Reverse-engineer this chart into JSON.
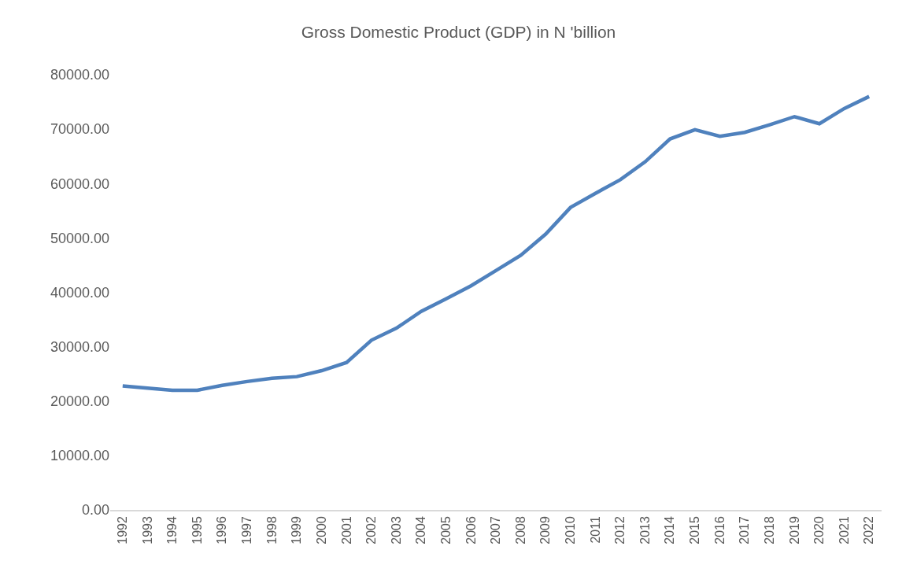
{
  "chart_data": {
    "type": "line",
    "title": "Gross Domestic Product (GDP) in N 'billion",
    "categories": [
      "1992",
      "1993",
      "1994",
      "1995",
      "1996",
      "1997",
      "1998",
      "1999",
      "2000",
      "2001",
      "2002",
      "2003",
      "2004",
      "2005",
      "2006",
      "2007",
      "2008",
      "2009",
      "2010",
      "2011",
      "2012",
      "2013",
      "2014",
      "2015",
      "2016",
      "2017",
      "2018",
      "2019",
      "2020",
      "2021",
      "2022"
    ],
    "series": [
      {
        "color": "#4f81bd",
        "values": [
          22800,
          22400,
          22000,
          22000,
          22900,
          23600,
          24200,
          24500,
          25600,
          27100,
          31200,
          33400,
          36500,
          38800,
          41200,
          44000,
          46800,
          50700,
          55600,
          58200,
          60700,
          64000,
          68200,
          69900,
          68700,
          69400,
          70800,
          72300,
          71000,
          73800,
          76000
        ]
      }
    ],
    "ylim": [
      0,
      80000
    ],
    "yticks": [
      {
        "value": 0,
        "label": "0.00"
      },
      {
        "value": 10000,
        "label": "10000.00"
      },
      {
        "value": 20000,
        "label": "20000.00"
      },
      {
        "value": 30000,
        "label": "30000.00"
      },
      {
        "value": 40000,
        "label": "40000.00"
      },
      {
        "value": 50000,
        "label": "50000.00"
      },
      {
        "value": 60000,
        "label": "60000.00"
      },
      {
        "value": 70000,
        "label": "70000.00"
      },
      {
        "value": 80000,
        "label": "80000.00"
      }
    ],
    "marker": "none",
    "line_style": "solid"
  }
}
